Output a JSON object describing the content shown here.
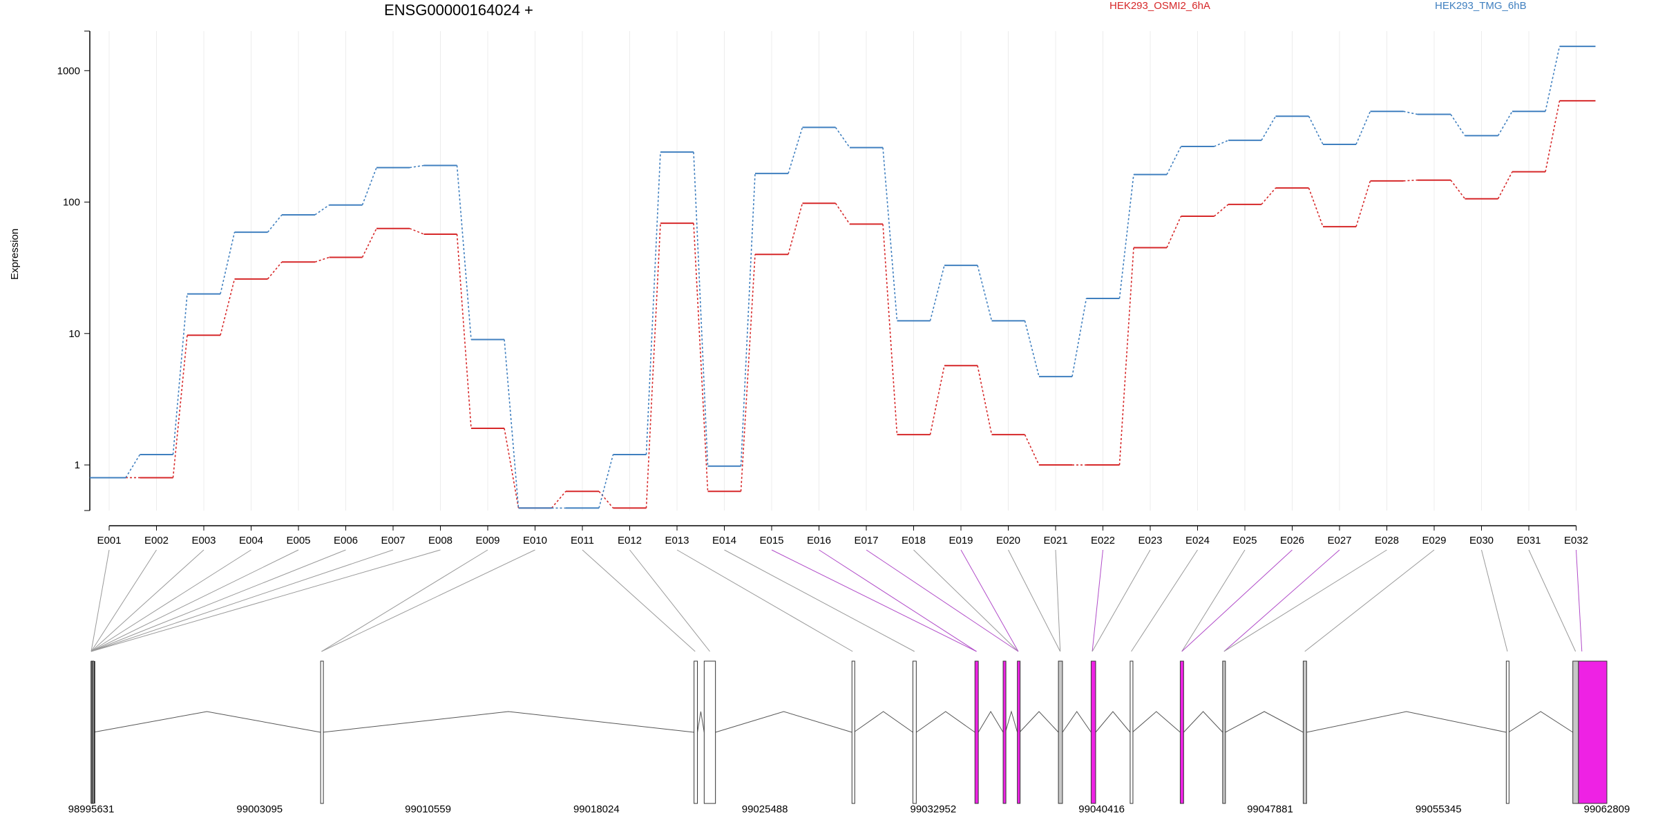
{
  "title": "ENSG00000164024 +",
  "ylabel": "Expression",
  "colors": {
    "osmi2": "#d62728",
    "tmg": "#3f7fbf",
    "exon_fill": "#ffffff",
    "exon_grey": "#c8c8c8",
    "exon_magenta": "#ee22e4",
    "connector_grey": "#999999",
    "connector_magenta": "#b04ac8"
  },
  "chart_data": {
    "type": "line",
    "y_scale": "log",
    "ylim": [
      0.45,
      2000
    ],
    "yticks": [
      1,
      10,
      100,
      1000
    ],
    "ytick_labels": [
      "1",
      "10",
      "100",
      "1000"
    ],
    "grid": "vertical",
    "legend_placement": "top",
    "categories": [
      "E001",
      "E002",
      "E003",
      "E004",
      "E005",
      "E006",
      "E007",
      "E008",
      "E009",
      "E010",
      "E011",
      "E012",
      "E013",
      "E014",
      "E015",
      "E016",
      "E017",
      "E018",
      "E019",
      "E020",
      "E021",
      "E022",
      "E023",
      "E024",
      "E025",
      "E026",
      "E027",
      "E028",
      "E029",
      "E030",
      "E031",
      "E032"
    ],
    "series": [
      {
        "name": "HEK293_OSMI2_6hA",
        "color": "#d62728",
        "values": [
          0.8,
          0.8,
          9.7,
          26,
          35,
          38,
          63,
          57,
          1.9,
          0.47,
          0.63,
          0.47,
          69,
          0.63,
          40,
          98,
          68,
          1.7,
          5.7,
          1.7,
          1.0,
          1.0,
          45,
          78,
          96,
          128,
          65,
          145,
          147,
          106,
          170,
          590
        ]
      },
      {
        "name": "HEK293_TMG_6hB",
        "color": "#3f7fbf",
        "values": [
          0.8,
          1.2,
          20,
          59,
          80,
          95,
          183,
          190,
          9.0,
          0.47,
          0.47,
          1.2,
          240,
          0.98,
          165,
          370,
          260,
          12.5,
          33,
          12.5,
          4.7,
          18.5,
          162,
          265,
          295,
          450,
          275,
          490,
          465,
          320,
          490,
          1530
        ]
      }
    ],
    "genome_axis": {
      "tick_labels": [
        "98995631",
        "99003095",
        "99010559",
        "99018024",
        "99025488",
        "99032952",
        "99040416",
        "99047881",
        "99055345",
        "99062809"
      ],
      "range": [
        98995631,
        99062809
      ]
    }
  },
  "gene_model": {
    "exon_segments": [
      {
        "start": 98995631,
        "end": 98995720,
        "style": "white"
      },
      {
        "start": 99005800,
        "end": 99005890,
        "style": "white"
      },
      {
        "start": 99022350,
        "end": 99022500,
        "style": "white"
      },
      {
        "start": 99022800,
        "end": 99023300,
        "style": "white"
      },
      {
        "start": 99029350,
        "end": 99029430,
        "style": "white"
      },
      {
        "start": 99032050,
        "end": 99032200,
        "style": "white"
      },
      {
        "start": 99034800,
        "end": 99034950,
        "style": "magenta"
      },
      {
        "start": 99036050,
        "end": 99036150,
        "style": "magenta"
      },
      {
        "start": 99036680,
        "end": 99036780,
        "style": "magenta"
      },
      {
        "start": 99038500,
        "end": 99038680,
        "style": "grey"
      },
      {
        "start": 99039950,
        "end": 99040150,
        "style": "magenta"
      },
      {
        "start": 99041680,
        "end": 99041780,
        "style": "white"
      },
      {
        "start": 99043900,
        "end": 99044050,
        "style": "magenta"
      },
      {
        "start": 99045780,
        "end": 99045900,
        "style": "grey"
      },
      {
        "start": 99049350,
        "end": 99049500,
        "style": "grey"
      },
      {
        "start": 99058350,
        "end": 99058450,
        "style": "white"
      },
      {
        "start": 99061300,
        "end": 99061550,
        "style": "grey"
      },
      {
        "start": 99061550,
        "end": 99062809,
        "style": "magenta"
      }
    ],
    "connectors": [
      {
        "from": "E001",
        "to": 98995631,
        "style": "grey"
      },
      {
        "from": "E002",
        "to": 98995631,
        "style": "grey"
      },
      {
        "from": "E003",
        "to": 98995631,
        "style": "grey"
      },
      {
        "from": "E004",
        "to": 98995631,
        "style": "grey"
      },
      {
        "from": "E005",
        "to": 98995631,
        "style": "grey"
      },
      {
        "from": "E006",
        "to": 98995631,
        "style": "grey"
      },
      {
        "from": "E007",
        "to": 98995631,
        "style": "grey"
      },
      {
        "from": "E008",
        "to": 98995631,
        "style": "grey"
      },
      {
        "from": "E009",
        "to": 99005840,
        "style": "grey"
      },
      {
        "from": "E010",
        "to": 99005840,
        "style": "grey"
      },
      {
        "from": "E011",
        "to": 99022400,
        "style": "grey"
      },
      {
        "from": "E012",
        "to": 99023050,
        "style": "grey"
      },
      {
        "from": "E013",
        "to": 99029380,
        "style": "grey"
      },
      {
        "from": "E014",
        "to": 99032120,
        "style": "grey"
      },
      {
        "from": "E015",
        "to": 99034870,
        "style": "magenta"
      },
      {
        "from": "E016",
        "to": 99034870,
        "style": "magenta"
      },
      {
        "from": "E017",
        "to": 99036720,
        "style": "magenta"
      },
      {
        "from": "E018",
        "to": 99036720,
        "style": "grey"
      },
      {
        "from": "E019",
        "to": 99036720,
        "style": "magenta"
      },
      {
        "from": "E020",
        "to": 99038580,
        "style": "grey"
      },
      {
        "from": "E021",
        "to": 99038580,
        "style": "grey"
      },
      {
        "from": "E022",
        "to": 99040000,
        "style": "magenta"
      },
      {
        "from": "E023",
        "to": 99040000,
        "style": "grey"
      },
      {
        "from": "E024",
        "to": 99041730,
        "style": "grey"
      },
      {
        "from": "E025",
        "to": 99043970,
        "style": "grey"
      },
      {
        "from": "E026",
        "to": 99043970,
        "style": "magenta"
      },
      {
        "from": "E027",
        "to": 99045840,
        "style": "magenta"
      },
      {
        "from": "E028",
        "to": 99045840,
        "style": "grey"
      },
      {
        "from": "E029",
        "to": 99049420,
        "style": "grey"
      },
      {
        "from": "E030",
        "to": 99058400,
        "style": "grey"
      },
      {
        "from": "E031",
        "to": 99061420,
        "style": "grey"
      },
      {
        "from": "E032",
        "to": 99061700,
        "style": "magenta"
      }
    ]
  }
}
